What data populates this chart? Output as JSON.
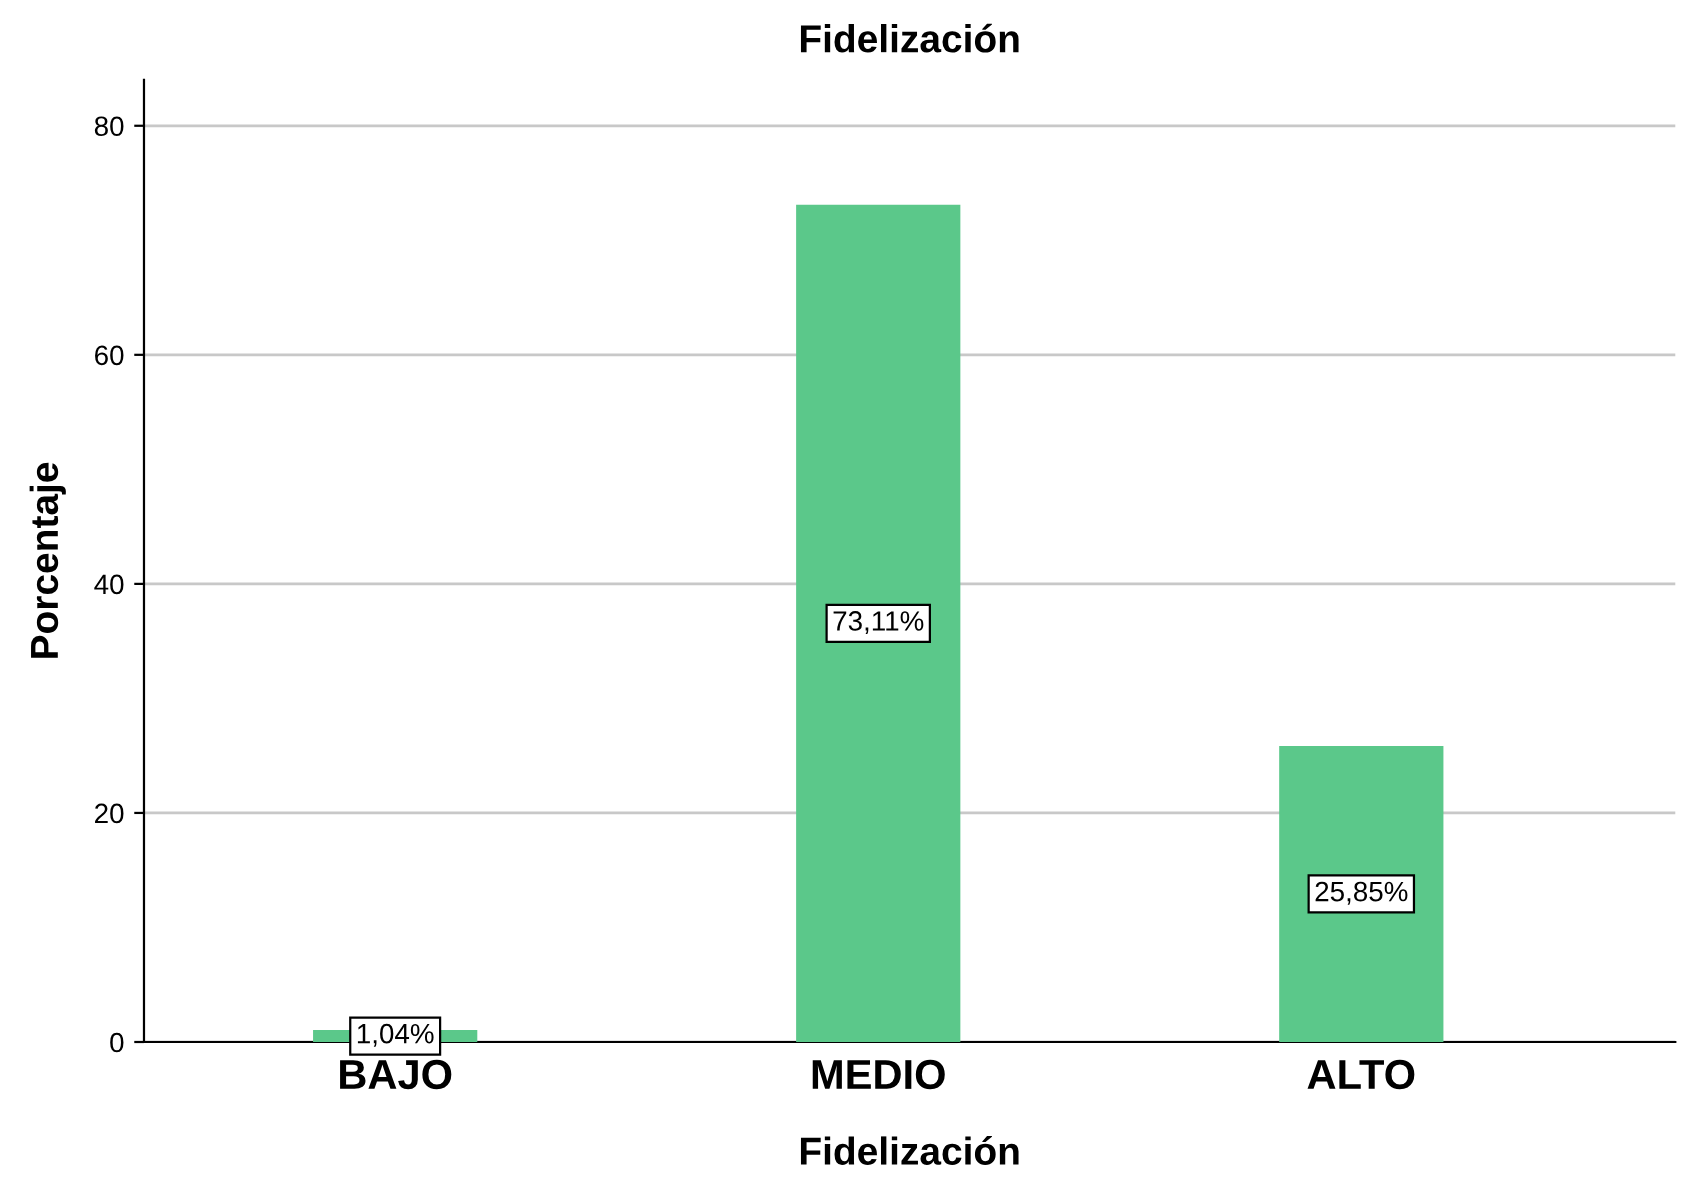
{
  "chart_data": {
    "type": "bar",
    "title": "Fidelización",
    "xlabel": "Fidelización",
    "ylabel": "Porcentaje",
    "categories": [
      "BAJO",
      "MEDIO",
      "ALTO"
    ],
    "values": [
      1.04,
      73.11,
      25.85
    ],
    "value_labels": [
      "1,04%",
      "73,11%",
      "25,85%"
    ],
    "color": "#5bc88a",
    "ylim": [
      0,
      84
    ],
    "yticks": [
      0,
      20,
      40,
      60,
      80
    ],
    "grid": "y"
  }
}
